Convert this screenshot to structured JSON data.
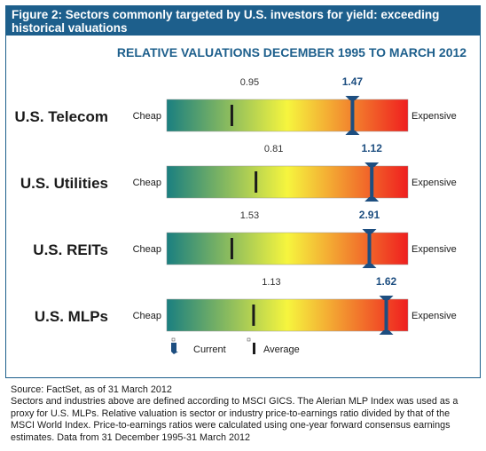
{
  "figure": {
    "title": "Figure 2: Sectors commonly targeted by U.S. investors for yield: exceeding historical valuations"
  },
  "chart_data": {
    "type": "bar",
    "title": "RELATIVE VALUATIONS DECEMBER 1995 TO MARCH 2012",
    "scale_low_label": "Cheap",
    "scale_high_label": "Expensive",
    "colors": {
      "frame": "#1d5f8c",
      "gradient": [
        "#1a7f80",
        "#f6f53e",
        "#ef1f1f"
      ],
      "current_marker": "#1d4e80",
      "average_marker": "#1a1a1a"
    },
    "categories": [
      "U.S. Telecom",
      "U.S. Utilities",
      "U.S. REITs",
      "U.S. MLPs"
    ],
    "series": [
      {
        "name": "Average",
        "values": [
          0.95,
          0.81,
          1.53,
          1.13
        ],
        "position_fraction": [
          0.27,
          0.37,
          0.27,
          0.36
        ]
      },
      {
        "name": "Current",
        "values": [
          1.47,
          1.12,
          2.91,
          1.62
        ],
        "position_fraction": [
          0.77,
          0.85,
          0.84,
          0.91
        ]
      }
    ],
    "legend": {
      "current_label": "Current",
      "average_label": "Average"
    }
  },
  "footer": {
    "source": "Source: FactSet, as of 31 March 2012",
    "notes": "Sectors and industries above are defined according to MSCI GICS.  The Alerian MLP Index was used as a proxy for U.S. MLPs. Relative valuation is sector or industry price-to-earnings ratio divided by that of the MSCI World Index. Price-to-earnings ratios were calculated using one-year forward consensus earnings estimates. Data from 31 December 1995-31 March 2012"
  }
}
